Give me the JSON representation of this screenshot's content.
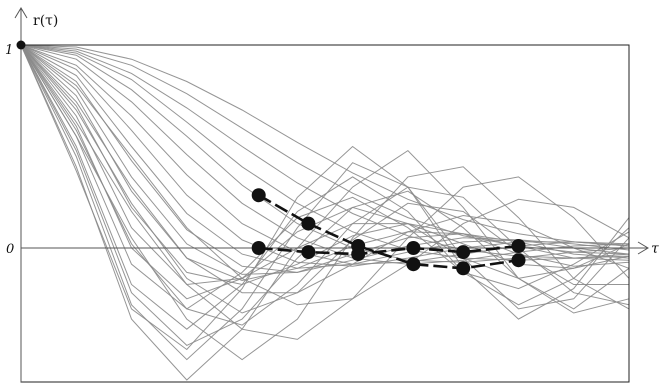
{
  "chart_data": {
    "type": "line",
    "title": "",
    "ylabel": "r(τ)",
    "xlabel": "τ",
    "y_ticks": [
      "1",
      "0"
    ],
    "xlim": [
      0,
      11
    ],
    "ylim": [
      -0.75,
      1
    ],
    "grid": false,
    "background_curves": [
      [
        [
          0,
          1
        ],
        [
          1,
          0.99
        ],
        [
          2,
          0.93
        ],
        [
          3,
          0.82
        ],
        [
          4,
          0.68
        ],
        [
          5,
          0.52
        ],
        [
          6,
          0.37
        ],
        [
          7,
          0.24
        ],
        [
          8,
          0.14
        ],
        [
          9,
          0.07
        ],
        [
          10,
          0.03
        ],
        [
          11,
          0.01
        ]
      ],
      [
        [
          0,
          1
        ],
        [
          1,
          0.98
        ],
        [
          2,
          0.9
        ],
        [
          3,
          0.76
        ],
        [
          4,
          0.59
        ],
        [
          5,
          0.42
        ],
        [
          6,
          0.27
        ],
        [
          7,
          0.15
        ],
        [
          8,
          0.06
        ],
        [
          9,
          0.01
        ],
        [
          10,
          -0.02
        ],
        [
          11,
          -0.03
        ]
      ],
      [
        [
          0,
          1
        ],
        [
          1,
          0.97
        ],
        [
          2,
          0.86
        ],
        [
          3,
          0.69
        ],
        [
          4,
          0.5
        ],
        [
          5,
          0.32
        ],
        [
          6,
          0.17
        ],
        [
          7,
          0.06
        ],
        [
          8,
          -0.01
        ],
        [
          9,
          -0.04
        ],
        [
          10,
          -0.05
        ],
        [
          11,
          -0.04
        ]
      ],
      [
        [
          0,
          1
        ],
        [
          1,
          0.96
        ],
        [
          2,
          0.83
        ],
        [
          3,
          0.62
        ],
        [
          4,
          0.4
        ],
        [
          5,
          0.22
        ],
        [
          6,
          0.08
        ],
        [
          7,
          -0.01
        ],
        [
          8,
          -0.05
        ],
        [
          9,
          -0.06
        ],
        [
          10,
          -0.05
        ],
        [
          11,
          -0.03
        ]
      ],
      [
        [
          0,
          1
        ],
        [
          1,
          0.95
        ],
        [
          2,
          0.78
        ],
        [
          3,
          0.55
        ],
        [
          4,
          0.31
        ],
        [
          5,
          0.12
        ],
        [
          6,
          0
        ],
        [
          7,
          -0.06
        ],
        [
          8,
          -0.07
        ],
        [
          9,
          -0.05
        ],
        [
          10,
          -0.02
        ],
        [
          11,
          0
        ]
      ],
      [
        [
          0,
          1
        ],
        [
          1,
          0.93
        ],
        [
          2,
          0.72
        ],
        [
          3,
          0.46
        ],
        [
          4,
          0.22
        ],
        [
          5,
          0.05
        ],
        [
          6,
          -0.05
        ],
        [
          7,
          -0.08
        ],
        [
          8,
          -0.06
        ],
        [
          9,
          -0.02
        ],
        [
          10,
          0.01
        ],
        [
          11,
          0.02
        ]
      ],
      [
        [
          0,
          1
        ],
        [
          1,
          0.9
        ],
        [
          2,
          0.65
        ],
        [
          3,
          0.36
        ],
        [
          4,
          0.12
        ],
        [
          5,
          -0.02
        ],
        [
          6,
          -0.08
        ],
        [
          7,
          -0.07
        ],
        [
          8,
          -0.03
        ],
        [
          9,
          0.01
        ],
        [
          10,
          0.03
        ],
        [
          11,
          0.02
        ]
      ],
      [
        [
          0,
          1
        ],
        [
          1,
          0.88
        ],
        [
          2,
          0.58
        ],
        [
          3,
          0.26
        ],
        [
          4,
          0.04
        ],
        [
          5,
          -0.07
        ],
        [
          6,
          -0.09
        ],
        [
          7,
          -0.05
        ],
        [
          8,
          0
        ],
        [
          9,
          0.03
        ],
        [
          10,
          0.03
        ],
        [
          11,
          0.01
        ]
      ],
      [
        [
          0,
          1
        ],
        [
          1,
          0.85
        ],
        [
          2,
          0.5
        ],
        [
          3,
          0.17
        ],
        [
          4,
          -0.03
        ],
        [
          5,
          -0.1
        ],
        [
          6,
          -0.08
        ],
        [
          7,
          -0.02
        ],
        [
          8,
          0.03
        ],
        [
          9,
          0.04
        ],
        [
          10,
          0.02
        ],
        [
          11,
          -0.01
        ]
      ],
      [
        [
          0,
          1
        ],
        [
          1,
          0.82
        ],
        [
          2,
          0.43
        ],
        [
          3,
          0.09
        ],
        [
          4,
          -0.09
        ],
        [
          5,
          -0.12
        ],
        [
          6,
          -0.06
        ],
        [
          7,
          0.01
        ],
        [
          8,
          0.05
        ],
        [
          9,
          0.04
        ],
        [
          10,
          0
        ],
        [
          11,
          -0.03
        ]
      ],
      [
        [
          0,
          1
        ],
        [
          1,
          0.78
        ],
        [
          2,
          0.35
        ],
        [
          3,
          0.02
        ],
        [
          4,
          -0.13
        ],
        [
          5,
          -0.12
        ],
        [
          6,
          -0.03
        ],
        [
          7,
          0.05
        ],
        [
          8,
          0.07
        ],
        [
          9,
          0.03
        ],
        [
          10,
          -0.03
        ],
        [
          11,
          -0.05
        ]
      ],
      [
        [
          0,
          1
        ],
        [
          1,
          0.75
        ],
        [
          2,
          0.28
        ],
        [
          3,
          -0.05
        ],
        [
          4,
          -0.16
        ],
        [
          5,
          -0.1
        ],
        [
          6,
          0.01
        ],
        [
          7,
          0.08
        ],
        [
          8,
          0.07
        ],
        [
          9,
          0.01
        ],
        [
          10,
          -0.05
        ],
        [
          11,
          -0.06
        ]
      ],
      [
        [
          0,
          1
        ],
        [
          1,
          0.7
        ],
        [
          2,
          0.2
        ],
        [
          3,
          -0.12
        ],
        [
          4,
          -0.18
        ],
        [
          5,
          -0.08
        ],
        [
          6,
          0.06
        ],
        [
          7,
          0.12
        ],
        [
          8,
          0.07
        ],
        [
          9,
          -0.03
        ],
        [
          10,
          -0.09
        ],
        [
          11,
          -0.07
        ]
      ],
      [
        [
          0,
          1
        ],
        [
          1,
          0.65
        ],
        [
          2,
          0.1
        ],
        [
          3,
          -0.18
        ],
        [
          4,
          -0.15
        ],
        [
          5,
          0
        ],
        [
          6,
          0.12
        ],
        [
          7,
          0.12
        ],
        [
          8,
          0.02
        ],
        [
          9,
          -0.08
        ],
        [
          10,
          -0.1
        ],
        [
          11,
          -0.04
        ]
      ],
      [
        [
          0,
          1
        ],
        [
          1,
          0.6
        ],
        [
          2,
          0
        ],
        [
          3,
          -0.25
        ],
        [
          4,
          -0.15
        ],
        [
          5,
          0.08
        ],
        [
          6,
          0.2
        ],
        [
          7,
          0.12
        ],
        [
          8,
          -0.05
        ],
        [
          9,
          -0.15
        ],
        [
          10,
          -0.1
        ],
        [
          11,
          0.02
        ]
      ],
      [
        [
          0,
          1
        ],
        [
          1,
          0.55
        ],
        [
          2,
          -0.08
        ],
        [
          3,
          -0.3
        ],
        [
          4,
          -0.12
        ],
        [
          5,
          0.15
        ],
        [
          6,
          0.25
        ],
        [
          7,
          0.1
        ],
        [
          8,
          -0.12
        ],
        [
          9,
          -0.2
        ],
        [
          10,
          -0.08
        ],
        [
          11,
          0.08
        ]
      ],
      [
        [
          0,
          1
        ],
        [
          1,
          0.5
        ],
        [
          2,
          -0.18
        ],
        [
          3,
          -0.4
        ],
        [
          4,
          -0.18
        ],
        [
          5,
          0.18
        ],
        [
          6,
          0.35
        ],
        [
          7,
          0.18
        ],
        [
          8,
          -0.12
        ],
        [
          9,
          -0.28
        ],
        [
          10,
          -0.15
        ],
        [
          11,
          0.1
        ]
      ],
      [
        [
          0,
          1
        ],
        [
          1,
          0.45
        ],
        [
          2,
          -0.28
        ],
        [
          3,
          -0.55
        ],
        [
          4,
          -0.3
        ],
        [
          5,
          0.1
        ],
        [
          6,
          0.42
        ],
        [
          7,
          0.3
        ],
        [
          8,
          -0.05
        ],
        [
          9,
          -0.3
        ],
        [
          10,
          -0.25
        ],
        [
          11,
          0.05
        ]
      ],
      [
        [
          0,
          1
        ],
        [
          1,
          0.4
        ],
        [
          2,
          -0.35
        ],
        [
          3,
          -0.65
        ],
        [
          4,
          -0.4
        ],
        [
          5,
          0
        ],
        [
          6,
          0.3
        ],
        [
          7,
          0.48
        ],
        [
          8,
          0.2
        ],
        [
          9,
          -0.15
        ],
        [
          10,
          -0.3
        ],
        [
          11,
          -0.1
        ]
      ],
      [
        [
          0,
          1
        ],
        [
          1,
          0.38
        ],
        [
          2,
          -0.3
        ],
        [
          3,
          -0.5
        ],
        [
          4,
          -0.2
        ],
        [
          5,
          0.25
        ],
        [
          6,
          0.5
        ],
        [
          7,
          0.3
        ],
        [
          8,
          -0.1
        ],
        [
          9,
          -0.35
        ],
        [
          10,
          -0.2
        ],
        [
          11,
          0.15
        ]
      ],
      [
        [
          0,
          1
        ],
        [
          1,
          0.55
        ],
        [
          2,
          0.05
        ],
        [
          3,
          -0.35
        ],
        [
          4,
          -0.55
        ],
        [
          5,
          -0.35
        ],
        [
          6,
          0.05
        ],
        [
          7,
          0.35
        ],
        [
          8,
          0.4
        ],
        [
          9,
          0.15
        ],
        [
          10,
          -0.15
        ],
        [
          11,
          -0.3
        ]
      ],
      [
        [
          0,
          1
        ],
        [
          1,
          0.62
        ],
        [
          2,
          0.18
        ],
        [
          3,
          -0.18
        ],
        [
          4,
          -0.4
        ],
        [
          5,
          -0.45
        ],
        [
          6,
          -0.25
        ],
        [
          7,
          0.05
        ],
        [
          8,
          0.3
        ],
        [
          9,
          0.35
        ],
        [
          10,
          0.15
        ],
        [
          11,
          -0.15
        ]
      ],
      [
        [
          0,
          1
        ],
        [
          1,
          0.8
        ],
        [
          2,
          0.45
        ],
        [
          3,
          0.1
        ],
        [
          4,
          -0.15
        ],
        [
          5,
          -0.28
        ],
        [
          6,
          -0.25
        ],
        [
          7,
          -0.08
        ],
        [
          8,
          0.12
        ],
        [
          9,
          0.24
        ],
        [
          10,
          0.2
        ],
        [
          11,
          0.05
        ]
      ],
      [
        [
          0,
          1
        ],
        [
          1,
          0.48
        ],
        [
          2,
          -0.22
        ],
        [
          3,
          -0.48
        ],
        [
          4,
          -0.35
        ],
        [
          5,
          -0.05
        ],
        [
          6,
          0.2
        ],
        [
          7,
          0.28
        ],
        [
          8,
          0.1
        ],
        [
          9,
          -0.15
        ],
        [
          10,
          -0.32
        ],
        [
          11,
          -0.25
        ]
      ],
      [
        [
          0,
          1
        ],
        [
          1,
          0.58
        ],
        [
          2,
          0.02
        ],
        [
          3,
          -0.3
        ],
        [
          4,
          -0.38
        ],
        [
          5,
          -0.18
        ],
        [
          6,
          0.12
        ],
        [
          7,
          0.3
        ],
        [
          8,
          0.25
        ],
        [
          9,
          0
        ],
        [
          10,
          -0.22
        ],
        [
          11,
          -0.28
        ]
      ],
      [
        [
          0,
          1
        ],
        [
          1,
          0.72
        ],
        [
          2,
          0.3
        ],
        [
          3,
          -0.05
        ],
        [
          4,
          -0.22
        ],
        [
          5,
          -0.22
        ],
        [
          6,
          -0.08
        ],
        [
          7,
          0.08
        ],
        [
          8,
          0.16
        ],
        [
          9,
          0.12
        ],
        [
          10,
          0
        ],
        [
          11,
          -0.1
        ]
      ],
      [
        [
          0,
          1
        ],
        [
          1,
          0.68
        ],
        [
          2,
          0.22
        ],
        [
          3,
          -0.15
        ],
        [
          4,
          -0.32
        ],
        [
          5,
          -0.22
        ],
        [
          6,
          0.04
        ],
        [
          7,
          0.22
        ],
        [
          8,
          0.18
        ],
        [
          9,
          -0.02
        ],
        [
          10,
          -0.18
        ],
        [
          11,
          -0.18
        ]
      ]
    ],
    "highlight_series": [
      {
        "x": [
          4.3,
          5.2,
          6.1,
          7.1,
          8.0,
          9.0
        ],
        "y": [
          0.26,
          0.12,
          0.01,
          -0.08,
          -0.1,
          -0.06
        ]
      },
      {
        "x": [
          4.3,
          5.2,
          6.1,
          7.1,
          8.0,
          9.0
        ],
        "y": [
          0.0,
          -0.02,
          -0.03,
          0.0,
          -0.02,
          0.01
        ]
      }
    ],
    "highlight_color": "#111111",
    "background_color": "#8a8a8a"
  }
}
